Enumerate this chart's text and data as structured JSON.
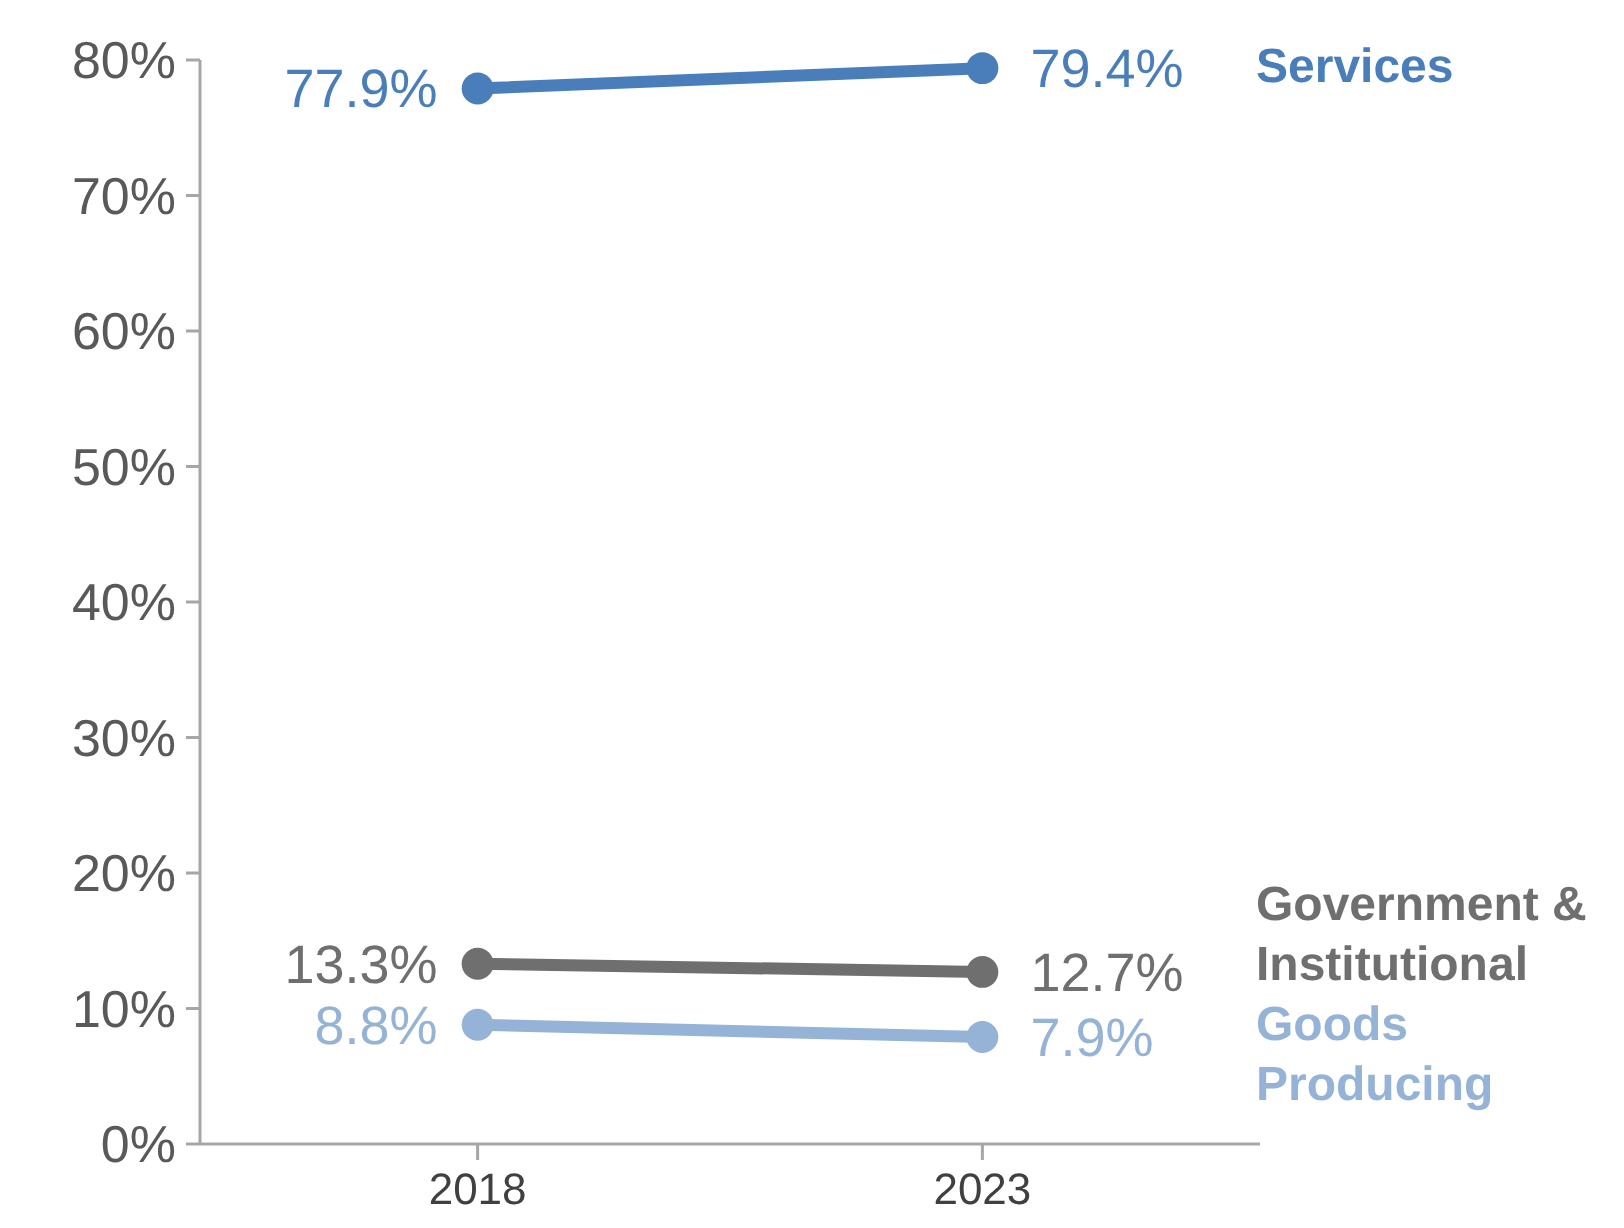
{
  "chart_data": {
    "type": "line",
    "categories": [
      "2018",
      "2023"
    ],
    "series": [
      {
        "name": "Services",
        "color": "#4a7ebb",
        "values": [
          77.9,
          79.4
        ],
        "value_labels": [
          "77.9%",
          "79.4%"
        ]
      },
      {
        "name": "Government & Institutional",
        "color": "#6f6f6f",
        "values": [
          13.3,
          12.7
        ],
        "value_labels": [
          "13.3%",
          "12.7%"
        ]
      },
      {
        "name": "Goods Producing",
        "color": "#95b3d7",
        "values": [
          8.8,
          7.9
        ],
        "value_labels": [
          "8.8%",
          "7.9%"
        ]
      }
    ],
    "ylim": [
      0,
      80
    ],
    "yticks": [
      {
        "value": 0,
        "label": "0%"
      },
      {
        "value": 10,
        "label": "10%"
      },
      {
        "value": 20,
        "label": "20%"
      },
      {
        "value": 30,
        "label": "30%"
      },
      {
        "value": 40,
        "label": "40%"
      },
      {
        "value": 50,
        "label": "50%"
      },
      {
        "value": 60,
        "label": "60%"
      },
      {
        "value": 70,
        "label": "70%"
      },
      {
        "value": 80,
        "label": "80%"
      }
    ],
    "grid": false,
    "marker": "circle",
    "line_style": "solid"
  }
}
